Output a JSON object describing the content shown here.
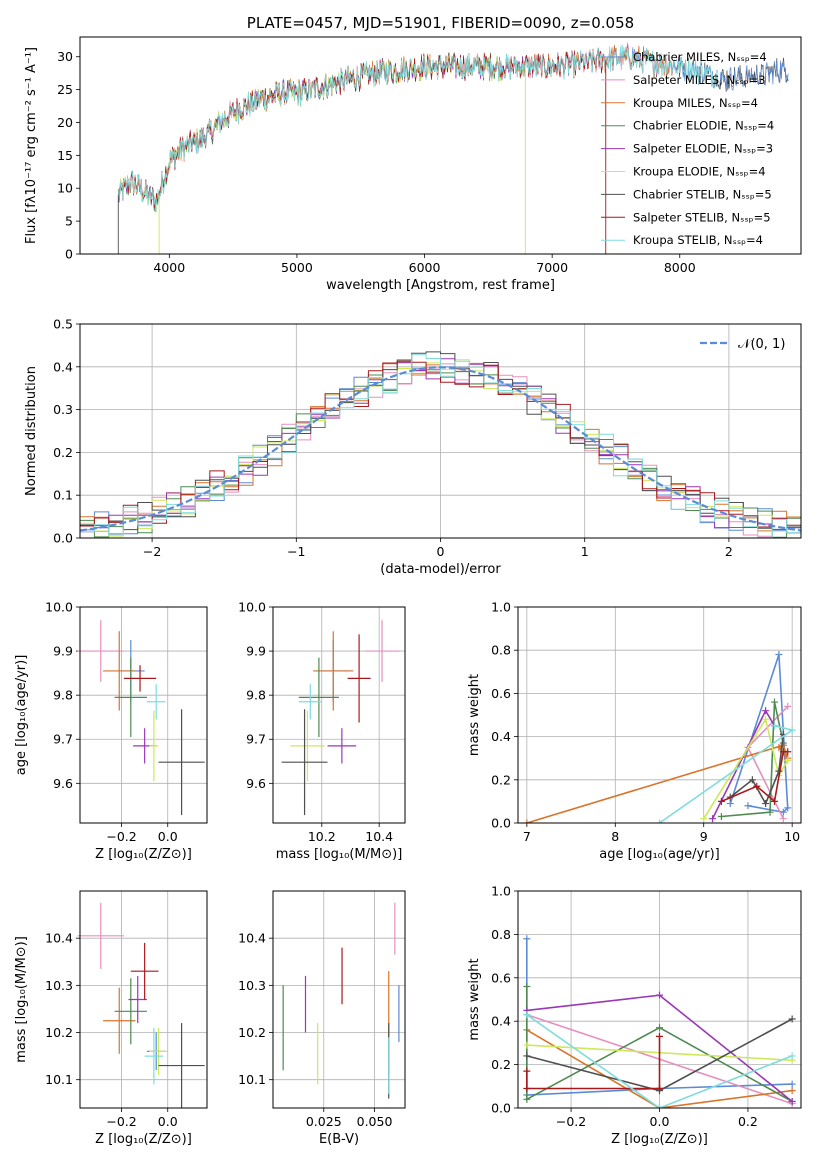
{
  "colors": {
    "chabrier_miles": "#5b8bd6",
    "salpeter_miles": "#e58fbf",
    "kroupa_miles": "#d9742a",
    "chabrier_elodie": "#4e8a52",
    "salpeter_elodie": "#9a37b8",
    "kroupa_elodie": "#cde85a",
    "chabrier_stelib": "#4f4f4f",
    "salpeter_stelib": "#a8191c",
    "kroupa_stelib": "#7fdcdd"
  },
  "chart_data": [
    {
      "id": "spectrum",
      "type": "line",
      "title": "PLATE=0457, MJD=51901, FIBERID=0090, z=0.058",
      "xlabel": "wavelength [Angstrom, rest frame]",
      "ylabel": "Flux [fλ10⁻¹⁷ erg cm⁻² s⁻¹ A⁻¹]",
      "xlim": [
        3300,
        8950
      ],
      "ylim": [
        0,
        33
      ],
      "xticks": [
        "4000",
        "5000",
        "6000",
        "7000",
        "8000"
      ],
      "yticks": [
        "0",
        "5",
        "10",
        "15",
        "20",
        "25",
        "30"
      ],
      "legend_position": "right",
      "continuum": {
        "x": [
          3600,
          3700,
          3800,
          3900,
          4000,
          4100,
          4200,
          4300,
          4400,
          4500,
          4600,
          4700,
          4800,
          4900,
          5000,
          5200,
          5400,
          5600,
          5800,
          6000,
          6200,
          6400,
          6600,
          6800,
          7000,
          7200,
          7400,
          7600,
          7800,
          8000,
          8200,
          8400,
          8600,
          8800
        ],
        "y": [
          9,
          11,
          9.5,
          8,
          14,
          16,
          17,
          18,
          20,
          21.5,
          22.5,
          23.5,
          24,
          24.5,
          24.5,
          25.5,
          26.5,
          27.5,
          28,
          28.5,
          28.5,
          28.5,
          28.5,
          28.5,
          28.5,
          29,
          29.5,
          30,
          29,
          28.5,
          27.5,
          26.5,
          27,
          28
        ]
      },
      "series": [
        {
          "name": "Chabrier MILES, Nₛₛₚ=4",
          "color_key": "chabrier_miles",
          "x_end": 8850
        },
        {
          "name": "Salpeter MILES, Nₛₛₚ=3",
          "color_key": "salpeter_miles",
          "x_end": 7950
        },
        {
          "name": "Kroupa MILES, Nₛₛₚ=4",
          "color_key": "kroupa_miles",
          "x_end": 7950
        },
        {
          "name": "Chabrier ELODIE, Nₛₛₚ=4",
          "color_key": "chabrier_elodie",
          "x_end": 6800
        },
        {
          "name": "Salpeter ELODIE, Nₛₛₚ=3",
          "color_key": "salpeter_elodie",
          "x_end": 6800
        },
        {
          "name": "Kroupa ELODIE, Nₛₛₚ=4",
          "color_key": "kroupa_elodie",
          "x_end": 6800
        },
        {
          "name": "Chabrier STELIB, Nₛₛₚ=5",
          "color_key": "chabrier_stelib",
          "x_end": 8850
        },
        {
          "name": "Salpeter STELIB, Nₛₛₚ=5",
          "color_key": "salpeter_stelib",
          "x_end": 7400
        },
        {
          "name": "Kroupa STELIB, Nₛₛₚ=4",
          "color_key": "kroupa_stelib",
          "x_end": 8300
        }
      ]
    },
    {
      "id": "residuals",
      "type": "line",
      "xlabel": "(data-model)/error",
      "ylabel": "Normed distribution",
      "xlim": [
        -2.5,
        2.5
      ],
      "ylim": [
        0,
        0.5
      ],
      "xticks": [
        "−2",
        "−1",
        "0",
        "1",
        "2"
      ],
      "yticks": [
        "0.0",
        "0.1",
        "0.2",
        "0.3",
        "0.4",
        "0.5"
      ],
      "grid": true,
      "legend_position": "top-right",
      "gaussian_label": "𝒩(0, 1)",
      "bin_width": 0.1
    },
    {
      "id": "age_vs_Z",
      "type": "scatter",
      "xlabel": "Z [log₁₀(Z/Z⊙)]",
      "ylabel": "age  [log₁₀(age/yr)]",
      "xlim": [
        -0.38,
        0.17
      ],
      "ylim": [
        9.51,
        10.0
      ],
      "xticks": [
        "−0.2",
        "0.0"
      ],
      "yticks": [
        "9.6",
        "9.7",
        "9.8",
        "9.9",
        "10.0"
      ],
      "grid": true,
      "points": [
        {
          "key": "chabrier_miles",
          "x": -0.16,
          "xerr": 0.06,
          "y": 9.855,
          "yerr": 0.07
        },
        {
          "key": "salpeter_miles",
          "x": -0.29,
          "xerr": 0.1,
          "y": 9.9,
          "yerr": 0.07
        },
        {
          "key": "kroupa_miles",
          "x": -0.21,
          "xerr": 0.07,
          "y": 9.855,
          "yerr": 0.09
        },
        {
          "key": "chabrier_elodie",
          "x": -0.16,
          "xerr": 0.07,
          "y": 9.795,
          "yerr": 0.09
        },
        {
          "key": "salpeter_elodie",
          "x": -0.1,
          "xerr": 0.05,
          "y": 9.685,
          "yerr": 0.04
        },
        {
          "key": "kroupa_elodie",
          "x": -0.06,
          "xerr": 0.02,
          "y": 9.685,
          "yerr": 0.08
        },
        {
          "key": "chabrier_stelib",
          "x": 0.06,
          "xerr": 0.1,
          "y": 9.648,
          "yerr": 0.12
        },
        {
          "key": "salpeter_stelib",
          "x": -0.12,
          "xerr": 0.07,
          "y": 9.838,
          "yerr": 0.03
        },
        {
          "key": "kroupa_stelib",
          "x": -0.05,
          "xerr": 0.04,
          "y": 9.785,
          "yerr": 0.04
        }
      ]
    },
    {
      "id": "age_vs_mass",
      "type": "scatter",
      "xlabel": "mass [log₁₀(M/M⊙)]",
      "xlim": [
        10.03,
        10.49
      ],
      "ylim": [
        9.51,
        10.0
      ],
      "xticks": [
        "10.2",
        "10.4"
      ],
      "yticks": [
        "9.6",
        "9.7",
        "9.8",
        "9.9",
        "10.0"
      ],
      "grid": true,
      "points": [
        {
          "key": "chabrier_miles",
          "x": 10.24,
          "xerr": 0.06,
          "y": 9.855,
          "yerr": 0.07
        },
        {
          "key": "salpeter_miles",
          "x": 10.41,
          "xerr": 0.06,
          "y": 9.9,
          "yerr": 0.07
        },
        {
          "key": "kroupa_miles",
          "x": 10.24,
          "xerr": 0.07,
          "y": 9.855,
          "yerr": 0.09
        },
        {
          "key": "chabrier_elodie",
          "x": 10.19,
          "xerr": 0.07,
          "y": 9.795,
          "yerr": 0.09
        },
        {
          "key": "salpeter_elodie",
          "x": 10.27,
          "xerr": 0.05,
          "y": 9.685,
          "yerr": 0.04
        },
        {
          "key": "kroupa_elodie",
          "x": 10.15,
          "xerr": 0.06,
          "y": 9.685,
          "yerr": 0.08
        },
        {
          "key": "chabrier_stelib",
          "x": 10.14,
          "xerr": 0.08,
          "y": 9.648,
          "yerr": 0.12
        },
        {
          "key": "salpeter_stelib",
          "x": 10.33,
          "xerr": 0.04,
          "y": 9.838,
          "yerr": 0.1
        },
        {
          "key": "kroupa_stelib",
          "x": 10.16,
          "xerr": 0.04,
          "y": 9.785,
          "yerr": 0.04
        }
      ]
    },
    {
      "id": "massweight_vs_age",
      "type": "line",
      "xlabel": "age  [log₁₀(age/yr)]",
      "ylabel": "mass weight",
      "xlim": [
        6.9,
        10.1
      ],
      "ylim": [
        0,
        1.0
      ],
      "xticks": [
        "7",
        "8",
        "9",
        "10"
      ],
      "yticks": [
        "0.0",
        "0.2",
        "0.4",
        "0.6",
        "0.8",
        "1.0"
      ],
      "grid": true,
      "series": [
        {
          "key": "chabrier_miles",
          "x": [
            9.5,
            9.9,
            9.95,
            9.85,
            9.3
          ],
          "y": [
            0.08,
            0.05,
            0.07,
            0.78,
            0.09
          ]
        },
        {
          "key": "salpeter_miles",
          "x": [
            9.95,
            9.5,
            9.9
          ],
          "y": [
            0.54,
            0.35,
            0.02
          ]
        },
        {
          "key": "kroupa_miles",
          "x": [
            7.0,
            9.9,
            9.95,
            9.85
          ],
          "y": [
            0.0,
            0.36,
            0.3,
            0.35
          ]
        },
        {
          "key": "chabrier_elodie",
          "x": [
            9.2,
            9.75,
            9.8,
            9.9
          ],
          "y": [
            0.03,
            0.05,
            0.56,
            0.37
          ]
        },
        {
          "key": "salpeter_elodie",
          "x": [
            9.1,
            9.7,
            9.8
          ],
          "y": [
            0.02,
            0.52,
            0.45
          ]
        },
        {
          "key": "kroupa_elodie",
          "x": [
            9.0,
            9.7,
            9.85,
            9.95
          ],
          "y": [
            0.02,
            0.48,
            0.22,
            0.29
          ]
        },
        {
          "key": "chabrier_stelib",
          "x": [
            9.3,
            9.55,
            9.7,
            9.85,
            9.9
          ],
          "y": [
            0.12,
            0.2,
            0.09,
            0.24,
            0.41
          ]
        },
        {
          "key": "salpeter_stelib",
          "x": [
            9.2,
            9.6,
            9.8,
            9.9,
            9.95
          ],
          "y": [
            0.1,
            0.17,
            0.1,
            0.33,
            0.33
          ]
        },
        {
          "key": "kroupa_stelib",
          "x": [
            8.5,
            10.0,
            9.8
          ],
          "y": [
            0.0,
            0.43,
            0.45
          ]
        }
      ]
    },
    {
      "id": "mass_vs_Z",
      "type": "scatter",
      "xlabel": "Z [log₁₀(Z/Z⊙)]",
      "ylabel": "mass [log₁₀(M/M⊙)]",
      "xlim": [
        -0.38,
        0.17
      ],
      "ylim": [
        10.04,
        10.5
      ],
      "xticks": [
        "−0.2",
        "0.0"
      ],
      "yticks": [
        "10.1",
        "10.2",
        "10.3",
        "10.4"
      ],
      "grid": true,
      "points": [
        {
          "key": "chabrier_miles",
          "x": -0.05,
          "xerr": 0.04,
          "y": 10.16,
          "yerr": 0.04
        },
        {
          "key": "salpeter_miles",
          "x": -0.29,
          "xerr": 0.1,
          "y": 10.405,
          "yerr": 0.07
        },
        {
          "key": "kroupa_miles",
          "x": -0.21,
          "xerr": 0.07,
          "y": 10.225,
          "yerr": 0.07
        },
        {
          "key": "chabrier_elodie",
          "x": -0.16,
          "xerr": 0.07,
          "y": 10.245,
          "yerr": 0.07
        },
        {
          "key": "salpeter_elodie",
          "x": -0.13,
          "xerr": 0.04,
          "y": 10.27,
          "yerr": 0.05
        },
        {
          "key": "kroupa_elodie",
          "x": -0.04,
          "xerr": 0.04,
          "y": 10.16,
          "yerr": 0.05
        },
        {
          "key": "chabrier_stelib",
          "x": 0.06,
          "xerr": 0.1,
          "y": 10.13,
          "yerr": 0.09
        },
        {
          "key": "salpeter_stelib",
          "x": -0.1,
          "xerr": 0.06,
          "y": 10.33,
          "yerr": 0.06
        },
        {
          "key": "kroupa_stelib",
          "x": -0.06,
          "xerr": 0.04,
          "y": 10.15,
          "yerr": 0.06
        }
      ]
    },
    {
      "id": "mass_vs_ebv",
      "type": "scatter",
      "xlabel": "E(B-V)",
      "xlim": [
        0.0,
        0.065
      ],
      "ylim": [
        10.04,
        10.5
      ],
      "xticks": [
        "0.025",
        "0.050"
      ],
      "yticks": [
        "10.1",
        "10.2",
        "10.3",
        "10.4"
      ],
      "grid": true,
      "points": [
        {
          "key": "chabrier_miles",
          "x": 0.062,
          "y": 10.24,
          "yerr": 0.06
        },
        {
          "key": "salpeter_miles",
          "x": 0.06,
          "y": 10.42,
          "yerr": 0.055
        },
        {
          "key": "kroupa_miles",
          "x": 0.057,
          "y": 10.22,
          "yerr": 0.11
        },
        {
          "key": "chabrier_elodie",
          "x": 0.005,
          "y": 10.21,
          "yerr": 0.09
        },
        {
          "key": "salpeter_elodie",
          "x": 0.016,
          "y": 10.26,
          "yerr": 0.06
        },
        {
          "key": "kroupa_elodie",
          "x": 0.022,
          "y": 10.155,
          "yerr": 0.065
        },
        {
          "key": "chabrier_stelib",
          "x": 0.057,
          "y": 10.14,
          "yerr": 0.08
        },
        {
          "key": "salpeter_stelib",
          "x": 0.034,
          "y": 10.32,
          "yerr": 0.06
        },
        {
          "key": "kroupa_stelib",
          "x": 0.057,
          "y": 10.13,
          "yerr": 0.06
        }
      ]
    },
    {
      "id": "massweight_vs_Z",
      "type": "line",
      "xlabel": "Z [log₁₀(Z/Z⊙)]",
      "ylabel": "mass weight",
      "xlim": [
        -0.32,
        0.32
      ],
      "ylim": [
        0,
        1.0
      ],
      "xticks": [
        "−0.2",
        "0.0",
        "0.2"
      ],
      "yticks": [
        "0.0",
        "0.2",
        "0.4",
        "0.6",
        "0.8",
        "1.0"
      ],
      "grid": true,
      "series": [
        {
          "key": "chabrier_miles",
          "x": [
            -0.3,
            -0.3,
            0.0,
            0.3
          ],
          "y": [
            0.78,
            0.06,
            0.09,
            0.11
          ]
        },
        {
          "key": "salpeter_miles",
          "x": [
            -0.3,
            0.3
          ],
          "y": [
            0.43,
            0.02
          ]
        },
        {
          "key": "kroupa_miles",
          "x": [
            -0.3,
            0.0,
            0.3
          ],
          "y": [
            0.36,
            0.0,
            0.08
          ]
        },
        {
          "key": "chabrier_elodie",
          "x": [
            -0.3,
            -0.3,
            0.0,
            0.3
          ],
          "y": [
            0.56,
            0.04,
            0.37,
            0.03
          ]
        },
        {
          "key": "salpeter_elodie",
          "x": [
            -0.3,
            0.0,
            0.3
          ],
          "y": [
            0.45,
            0.52,
            0.03
          ]
        },
        {
          "key": "kroupa_elodie",
          "x": [
            -0.3,
            0.3
          ],
          "y": [
            0.29,
            0.22
          ]
        },
        {
          "key": "chabrier_stelib",
          "x": [
            -0.3,
            0.0,
            0.3
          ],
          "y": [
            0.24,
            0.08,
            0.41
          ]
        },
        {
          "key": "salpeter_stelib",
          "x": [
            -0.3,
            -0.3,
            0.0,
            0.0
          ],
          "y": [
            0.17,
            0.09,
            0.09,
            0.33
          ]
        },
        {
          "key": "kroupa_stelib",
          "x": [
            -0.3,
            0.0,
            0.3
          ],
          "y": [
            0.43,
            0.0,
            0.24
          ]
        }
      ]
    }
  ]
}
